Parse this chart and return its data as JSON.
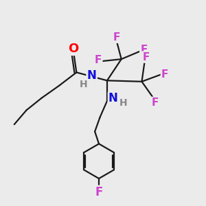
{
  "background_color": "#ebebeb",
  "colors": {
    "O": "#ff0000",
    "N": "#1010dd",
    "F": "#cc44cc",
    "H": "#888888",
    "bond": "#1a1a1a"
  },
  "bond_width": 1.6,
  "figsize": [
    3.0,
    3.0
  ],
  "dpi": 100
}
